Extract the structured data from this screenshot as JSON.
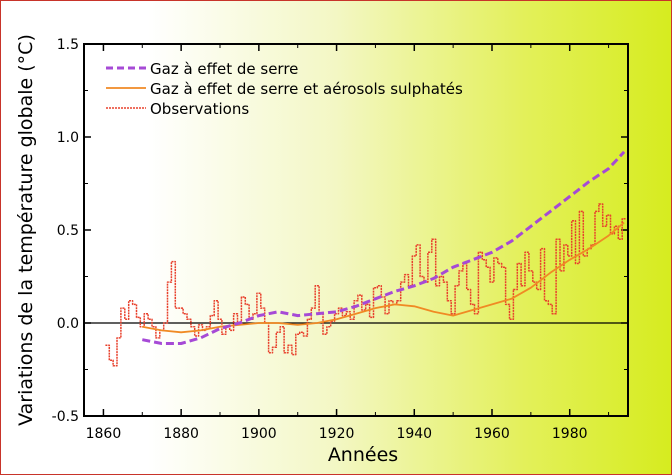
{
  "chart_data": {
    "type": "line",
    "title": "",
    "xlabel": "Années",
    "ylabel": "Variations de la température globale (°C)",
    "xlim": [
      1855,
      1995
    ],
    "ylim": [
      -0.5,
      1.5
    ],
    "x_ticks": [
      1860,
      1880,
      1900,
      1920,
      1940,
      1960,
      1980
    ],
    "y_ticks": [
      -0.5,
      0.0,
      0.5,
      1.0,
      1.5
    ],
    "y_tick_labels": [
      "-0.5",
      "0.0",
      "0.5",
      "1.0",
      "1.5"
    ],
    "zero_line": true,
    "grid": false,
    "legend_position": "top-left",
    "series": [
      {
        "name": "Gaz à effet de serre",
        "style": "dashed",
        "color": "#a64ad6",
        "x": [
          1870,
          1875,
          1880,
          1885,
          1890,
          1895,
          1900,
          1905,
          1910,
          1915,
          1920,
          1925,
          1930,
          1935,
          1940,
          1945,
          1950,
          1955,
          1960,
          1965,
          1970,
          1975,
          1980,
          1985,
          1990,
          1994
        ],
        "values": [
          -0.09,
          -0.11,
          -0.11,
          -0.08,
          -0.03,
          0.0,
          0.04,
          0.06,
          0.04,
          0.05,
          0.06,
          0.09,
          0.13,
          0.17,
          0.2,
          0.24,
          0.3,
          0.34,
          0.38,
          0.44,
          0.52,
          0.6,
          0.68,
          0.76,
          0.83,
          0.92
        ]
      },
      {
        "name": "Gaz à effet de serre et aérosols sulphatés",
        "style": "solid",
        "color": "#f08a24",
        "x": [
          1870,
          1875,
          1880,
          1885,
          1890,
          1895,
          1900,
          1905,
          1910,
          1915,
          1920,
          1925,
          1930,
          1935,
          1940,
          1945,
          1950,
          1955,
          1960,
          1965,
          1970,
          1975,
          1980,
          1985,
          1990,
          1994
        ],
        "values": [
          -0.02,
          -0.04,
          -0.05,
          -0.04,
          -0.02,
          -0.01,
          0.0,
          0.0,
          -0.01,
          0.0,
          0.02,
          0.05,
          0.08,
          0.1,
          0.09,
          0.06,
          0.04,
          0.07,
          0.1,
          0.13,
          0.19,
          0.27,
          0.34,
          0.4,
          0.47,
          0.54
        ]
      },
      {
        "name": "Observations",
        "style": "step",
        "color": "#e8402c",
        "x": [
          1861,
          1862,
          1863,
          1864,
          1865,
          1866,
          1867,
          1868,
          1869,
          1870,
          1871,
          1872,
          1873,
          1874,
          1875,
          1876,
          1877,
          1878,
          1879,
          1880,
          1881,
          1882,
          1883,
          1884,
          1885,
          1886,
          1887,
          1888,
          1889,
          1890,
          1891,
          1892,
          1893,
          1894,
          1895,
          1896,
          1897,
          1898,
          1899,
          1900,
          1901,
          1902,
          1903,
          1904,
          1905,
          1906,
          1907,
          1908,
          1909,
          1910,
          1911,
          1912,
          1913,
          1914,
          1915,
          1916,
          1917,
          1918,
          1919,
          1920,
          1921,
          1922,
          1923,
          1924,
          1925,
          1926,
          1927,
          1928,
          1929,
          1930,
          1931,
          1932,
          1933,
          1934,
          1935,
          1936,
          1937,
          1938,
          1939,
          1940,
          1941,
          1942,
          1943,
          1944,
          1945,
          1946,
          1947,
          1948,
          1949,
          1950,
          1951,
          1952,
          1953,
          1954,
          1955,
          1956,
          1957,
          1958,
          1959,
          1960,
          1961,
          1962,
          1963,
          1964,
          1965,
          1966,
          1967,
          1968,
          1969,
          1970,
          1971,
          1972,
          1973,
          1974,
          1975,
          1976,
          1977,
          1978,
          1979,
          1980,
          1981,
          1982,
          1983,
          1984,
          1985,
          1986,
          1987,
          1988,
          1989,
          1990,
          1991,
          1992,
          1993,
          1994
        ],
        "values": [
          -0.12,
          -0.2,
          -0.23,
          -0.08,
          0.08,
          0.02,
          0.12,
          0.1,
          0.03,
          -0.02,
          0.05,
          0.02,
          -0.02,
          -0.08,
          -0.04,
          0.0,
          0.22,
          0.33,
          0.08,
          0.08,
          0.05,
          0.02,
          -0.02,
          -0.07,
          -0.01,
          -0.04,
          -0.02,
          0.04,
          0.12,
          0.02,
          -0.06,
          -0.02,
          -0.04,
          0.05,
          0.0,
          0.14,
          0.1,
          0.02,
          0.05,
          0.16,
          0.08,
          0.0,
          -0.16,
          -0.13,
          -0.05,
          -0.02,
          -0.16,
          -0.12,
          -0.17,
          -0.06,
          -0.05,
          -0.07,
          0.02,
          0.08,
          0.2,
          0.05,
          -0.06,
          -0.02,
          0.01,
          0.05,
          0.08,
          0.04,
          0.06,
          0.02,
          0.12,
          0.15,
          0.07,
          0.1,
          0.03,
          0.19,
          0.2,
          0.14,
          0.05,
          0.12,
          0.1,
          0.12,
          0.22,
          0.26,
          0.2,
          0.36,
          0.42,
          0.25,
          0.22,
          0.38,
          0.45,
          0.2,
          0.25,
          0.22,
          0.12,
          0.05,
          0.2,
          0.28,
          0.32,
          0.18,
          0.1,
          0.05,
          0.38,
          0.34,
          0.3,
          0.22,
          0.35,
          0.32,
          0.3,
          0.1,
          0.02,
          0.18,
          0.32,
          0.2,
          0.38,
          0.28,
          0.22,
          0.18,
          0.4,
          0.12,
          0.1,
          0.05,
          0.45,
          0.28,
          0.42,
          0.36,
          0.55,
          0.32,
          0.6,
          0.36,
          0.4,
          0.42,
          0.6,
          0.64,
          0.52,
          0.58,
          0.48,
          0.52,
          0.45,
          0.56
        ]
      }
    ]
  }
}
